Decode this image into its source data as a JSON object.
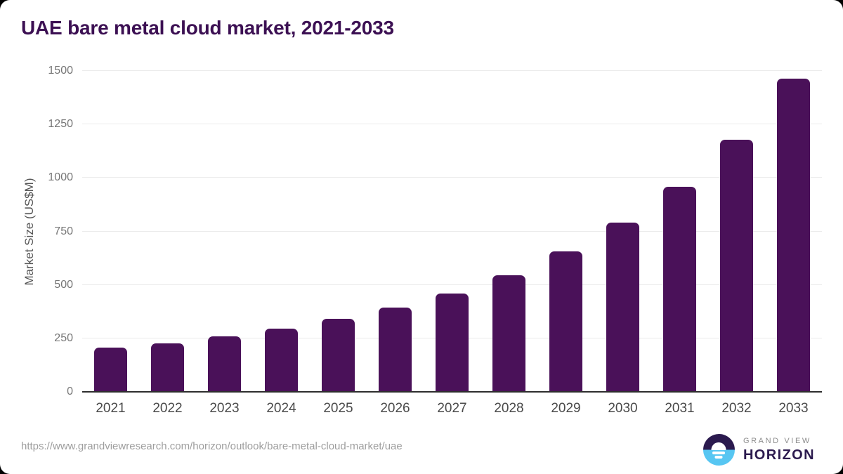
{
  "page": {
    "title": "UAE bare metal cloud market, 2021-2033"
  },
  "chart_data": {
    "type": "bar",
    "title": "UAE bare metal cloud market, 2021-2033",
    "categories": [
      "2021",
      "2022",
      "2023",
      "2024",
      "2025",
      "2026",
      "2027",
      "2028",
      "2029",
      "2030",
      "2031",
      "2032",
      "2033"
    ],
    "values": [
      208,
      227,
      260,
      297,
      341,
      394,
      460,
      545,
      657,
      790,
      960,
      1178,
      1465
    ],
    "xlabel": "",
    "ylabel": "Market Size (US$M)",
    "ylim": [
      0,
      1500
    ],
    "yticks": [
      0,
      250,
      500,
      750,
      1000,
      1250,
      1500
    ],
    "grid": true,
    "legend": false,
    "bar_color": "#4a1159"
  },
  "footer": {
    "source_url": "https://www.grandviewresearch.com/horizon/outlook/bare-metal-cloud-market/uae",
    "logo": {
      "line1": "GRAND VIEW",
      "line2": "HORIZON"
    }
  },
  "colors": {
    "title": "#3c1053",
    "bar": "#4a1159",
    "gridline": "#ebebeb",
    "axis": "#2e2e2e",
    "y_tick": "#767676",
    "x_tick": "#4a4a4a",
    "url_text": "#9e9e9e",
    "logo_dark": "#2b1a4e",
    "logo_blue": "#57c6f2",
    "logo_gray": "#8d8d8d"
  }
}
